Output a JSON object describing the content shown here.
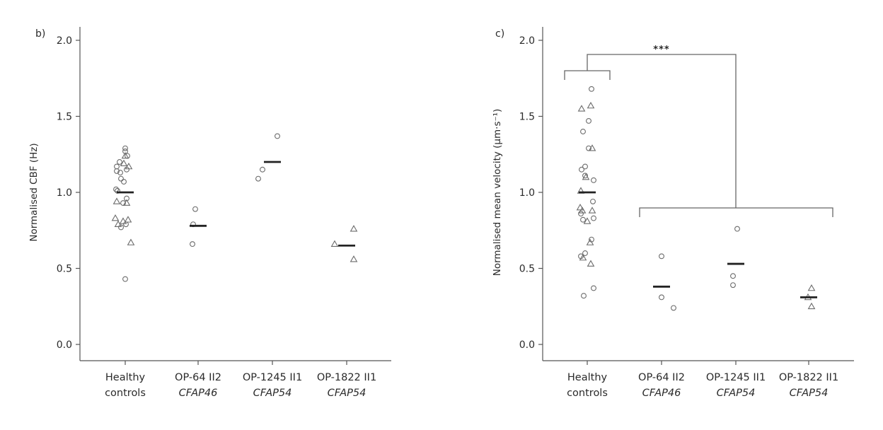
{
  "chart_data": [
    {
      "type": "scatter",
      "panel_label": "b)",
      "ylabel": "Normalised CBF (Hz)",
      "ylim": [
        0.0,
        2.0
      ],
      "yticks": [
        "0.0",
        "0.5",
        "1.0",
        "1.5",
        "2.0"
      ],
      "categories": [
        {
          "line1": "Healthy",
          "line2": "controls",
          "line2_italic": false
        },
        {
          "line1": "OP-64 II2",
          "line2": "CFAP46",
          "line2_italic": true
        },
        {
          "line1": "OP-1245 II1",
          "line2": "CFAP54",
          "line2_italic": true
        },
        {
          "line1": "OP-1822 II1",
          "line2": "CFAP54",
          "line2_italic": true
        }
      ],
      "groups": [
        {
          "mean": 1.0,
          "points": [
            {
              "dx": 0.0,
              "y": 1.29,
              "m": "circle"
            },
            {
              "dx": 0.0,
              "y": 1.27,
              "m": "circle"
            },
            {
              "dx": 0.03,
              "y": 1.24,
              "m": "circle"
            },
            {
              "dx": 0.0,
              "y": 1.24,
              "m": "triangle"
            },
            {
              "dx": -0.08,
              "y": 1.2,
              "m": "circle"
            },
            {
              "dx": -0.02,
              "y": 1.19,
              "m": "triangle"
            },
            {
              "dx": 0.05,
              "y": 1.17,
              "m": "triangle"
            },
            {
              "dx": -0.12,
              "y": 1.17,
              "m": "circle"
            },
            {
              "dx": 0.02,
              "y": 1.15,
              "m": "circle"
            },
            {
              "dx": -0.12,
              "y": 1.14,
              "m": "circle"
            },
            {
              "dx": -0.07,
              "y": 1.13,
              "m": "circle"
            },
            {
              "dx": -0.06,
              "y": 1.09,
              "m": "circle"
            },
            {
              "dx": -0.02,
              "y": 1.07,
              "m": "circle"
            },
            {
              "dx": -0.13,
              "y": 1.02,
              "m": "circle"
            },
            {
              "dx": -0.11,
              "y": 1.01,
              "m": "circle"
            },
            {
              "dx": 0.02,
              "y": 0.96,
              "m": "circle"
            },
            {
              "dx": -0.12,
              "y": 0.94,
              "m": "triangle"
            },
            {
              "dx": -0.03,
              "y": 0.93,
              "m": "circle"
            },
            {
              "dx": 0.02,
              "y": 0.93,
              "m": "triangle"
            },
            {
              "dx": -0.14,
              "y": 0.83,
              "m": "triangle"
            },
            {
              "dx": 0.04,
              "y": 0.82,
              "m": "triangle"
            },
            {
              "dx": -0.03,
              "y": 0.81,
              "m": "triangle"
            },
            {
              "dx": -0.1,
              "y": 0.79,
              "m": "triangle"
            },
            {
              "dx": 0.01,
              "y": 0.79,
              "m": "circle"
            },
            {
              "dx": -0.06,
              "y": 0.77,
              "m": "circle"
            },
            {
              "dx": 0.08,
              "y": 0.67,
              "m": "triangle"
            },
            {
              "dx": 0.0,
              "y": 0.43,
              "m": "circle"
            }
          ]
        },
        {
          "mean": 0.78,
          "points": [
            {
              "dx": -0.04,
              "y": 0.89,
              "m": "circle"
            },
            {
              "dx": -0.07,
              "y": 0.79,
              "m": "circle"
            },
            {
              "dx": -0.08,
              "y": 0.66,
              "m": "circle"
            }
          ]
        },
        {
          "mean": 1.2,
          "points": [
            {
              "dx": 0.07,
              "y": 1.37,
              "m": "circle"
            },
            {
              "dx": -0.14,
              "y": 1.15,
              "m": "circle"
            },
            {
              "dx": -0.2,
              "y": 1.09,
              "m": "circle"
            }
          ]
        },
        {
          "mean": 0.65,
          "points": [
            {
              "dx": 0.1,
              "y": 0.76,
              "m": "triangle"
            },
            {
              "dx": -0.17,
              "y": 0.66,
              "m": "triangle"
            },
            {
              "dx": 0.1,
              "y": 0.56,
              "m": "triangle"
            }
          ]
        }
      ]
    },
    {
      "type": "scatter",
      "panel_label": "c)",
      "ylabel": "Normalised mean velocity (µm·s⁻¹)",
      "ylim": [
        0.0,
        2.0
      ],
      "yticks": [
        "0.0",
        "0.5",
        "1.0",
        "1.5",
        "2.0"
      ],
      "categories": [
        {
          "line1": "Healthy",
          "line2": "controls",
          "line2_italic": false
        },
        {
          "line1": "OP-64 II2",
          "line2": "CFAP46",
          "line2_italic": true
        },
        {
          "line1": "OP-1245 II1",
          "line2": "CFAP54",
          "line2_italic": true
        },
        {
          "line1": "OP-1822 II1",
          "line2": "CFAP54",
          "line2_italic": true
        }
      ],
      "significance": "***",
      "groups": [
        {
          "mean": 1.0,
          "points": [
            {
              "dx": 0.06,
              "y": 1.68,
              "m": "circle"
            },
            {
              "dx": 0.05,
              "y": 1.57,
              "m": "triangle"
            },
            {
              "dx": -0.08,
              "y": 1.55,
              "m": "triangle"
            },
            {
              "dx": 0.02,
              "y": 1.47,
              "m": "circle"
            },
            {
              "dx": -0.06,
              "y": 1.4,
              "m": "circle"
            },
            {
              "dx": 0.02,
              "y": 1.29,
              "m": "circle"
            },
            {
              "dx": 0.07,
              "y": 1.29,
              "m": "triangle"
            },
            {
              "dx": -0.03,
              "y": 1.17,
              "m": "circle"
            },
            {
              "dx": -0.08,
              "y": 1.15,
              "m": "circle"
            },
            {
              "dx": -0.03,
              "y": 1.11,
              "m": "circle"
            },
            {
              "dx": -0.02,
              "y": 1.1,
              "m": "triangle"
            },
            {
              "dx": 0.09,
              "y": 1.08,
              "m": "circle"
            },
            {
              "dx": -0.09,
              "y": 1.01,
              "m": "triangle"
            },
            {
              "dx": 0.08,
              "y": 0.94,
              "m": "circle"
            },
            {
              "dx": -0.1,
              "y": 0.9,
              "m": "triangle"
            },
            {
              "dx": -0.07,
              "y": 0.88,
              "m": "triangle"
            },
            {
              "dx": 0.07,
              "y": 0.88,
              "m": "triangle"
            },
            {
              "dx": -0.09,
              "y": 0.86,
              "m": "circle"
            },
            {
              "dx": 0.09,
              "y": 0.83,
              "m": "circle"
            },
            {
              "dx": -0.06,
              "y": 0.82,
              "m": "circle"
            },
            {
              "dx": 0.0,
              "y": 0.81,
              "m": "triangle"
            },
            {
              "dx": 0.06,
              "y": 0.69,
              "m": "circle"
            },
            {
              "dx": 0.04,
              "y": 0.67,
              "m": "triangle"
            },
            {
              "dx": -0.03,
              "y": 0.6,
              "m": "circle"
            },
            {
              "dx": -0.09,
              "y": 0.58,
              "m": "circle"
            },
            {
              "dx": -0.06,
              "y": 0.57,
              "m": "triangle"
            },
            {
              "dx": 0.05,
              "y": 0.53,
              "m": "triangle"
            },
            {
              "dx": 0.09,
              "y": 0.37,
              "m": "circle"
            },
            {
              "dx": -0.05,
              "y": 0.32,
              "m": "circle"
            }
          ]
        },
        {
          "mean": 0.38,
          "points": [
            {
              "dx": 0.0,
              "y": 0.58,
              "m": "circle"
            },
            {
              "dx": 0.0,
              "y": 0.31,
              "m": "circle"
            },
            {
              "dx": 0.17,
              "y": 0.24,
              "m": "circle"
            }
          ]
        },
        {
          "mean": 0.53,
          "points": [
            {
              "dx": 0.02,
              "y": 0.76,
              "m": "circle"
            },
            {
              "dx": -0.04,
              "y": 0.45,
              "m": "circle"
            },
            {
              "dx": -0.04,
              "y": 0.39,
              "m": "circle"
            }
          ]
        },
        {
          "mean": 0.31,
          "points": [
            {
              "dx": 0.04,
              "y": 0.37,
              "m": "triangle"
            },
            {
              "dx": -0.01,
              "y": 0.31,
              "m": "triangle"
            },
            {
              "dx": 0.04,
              "y": 0.25,
              "m": "triangle"
            }
          ]
        }
      ]
    }
  ]
}
